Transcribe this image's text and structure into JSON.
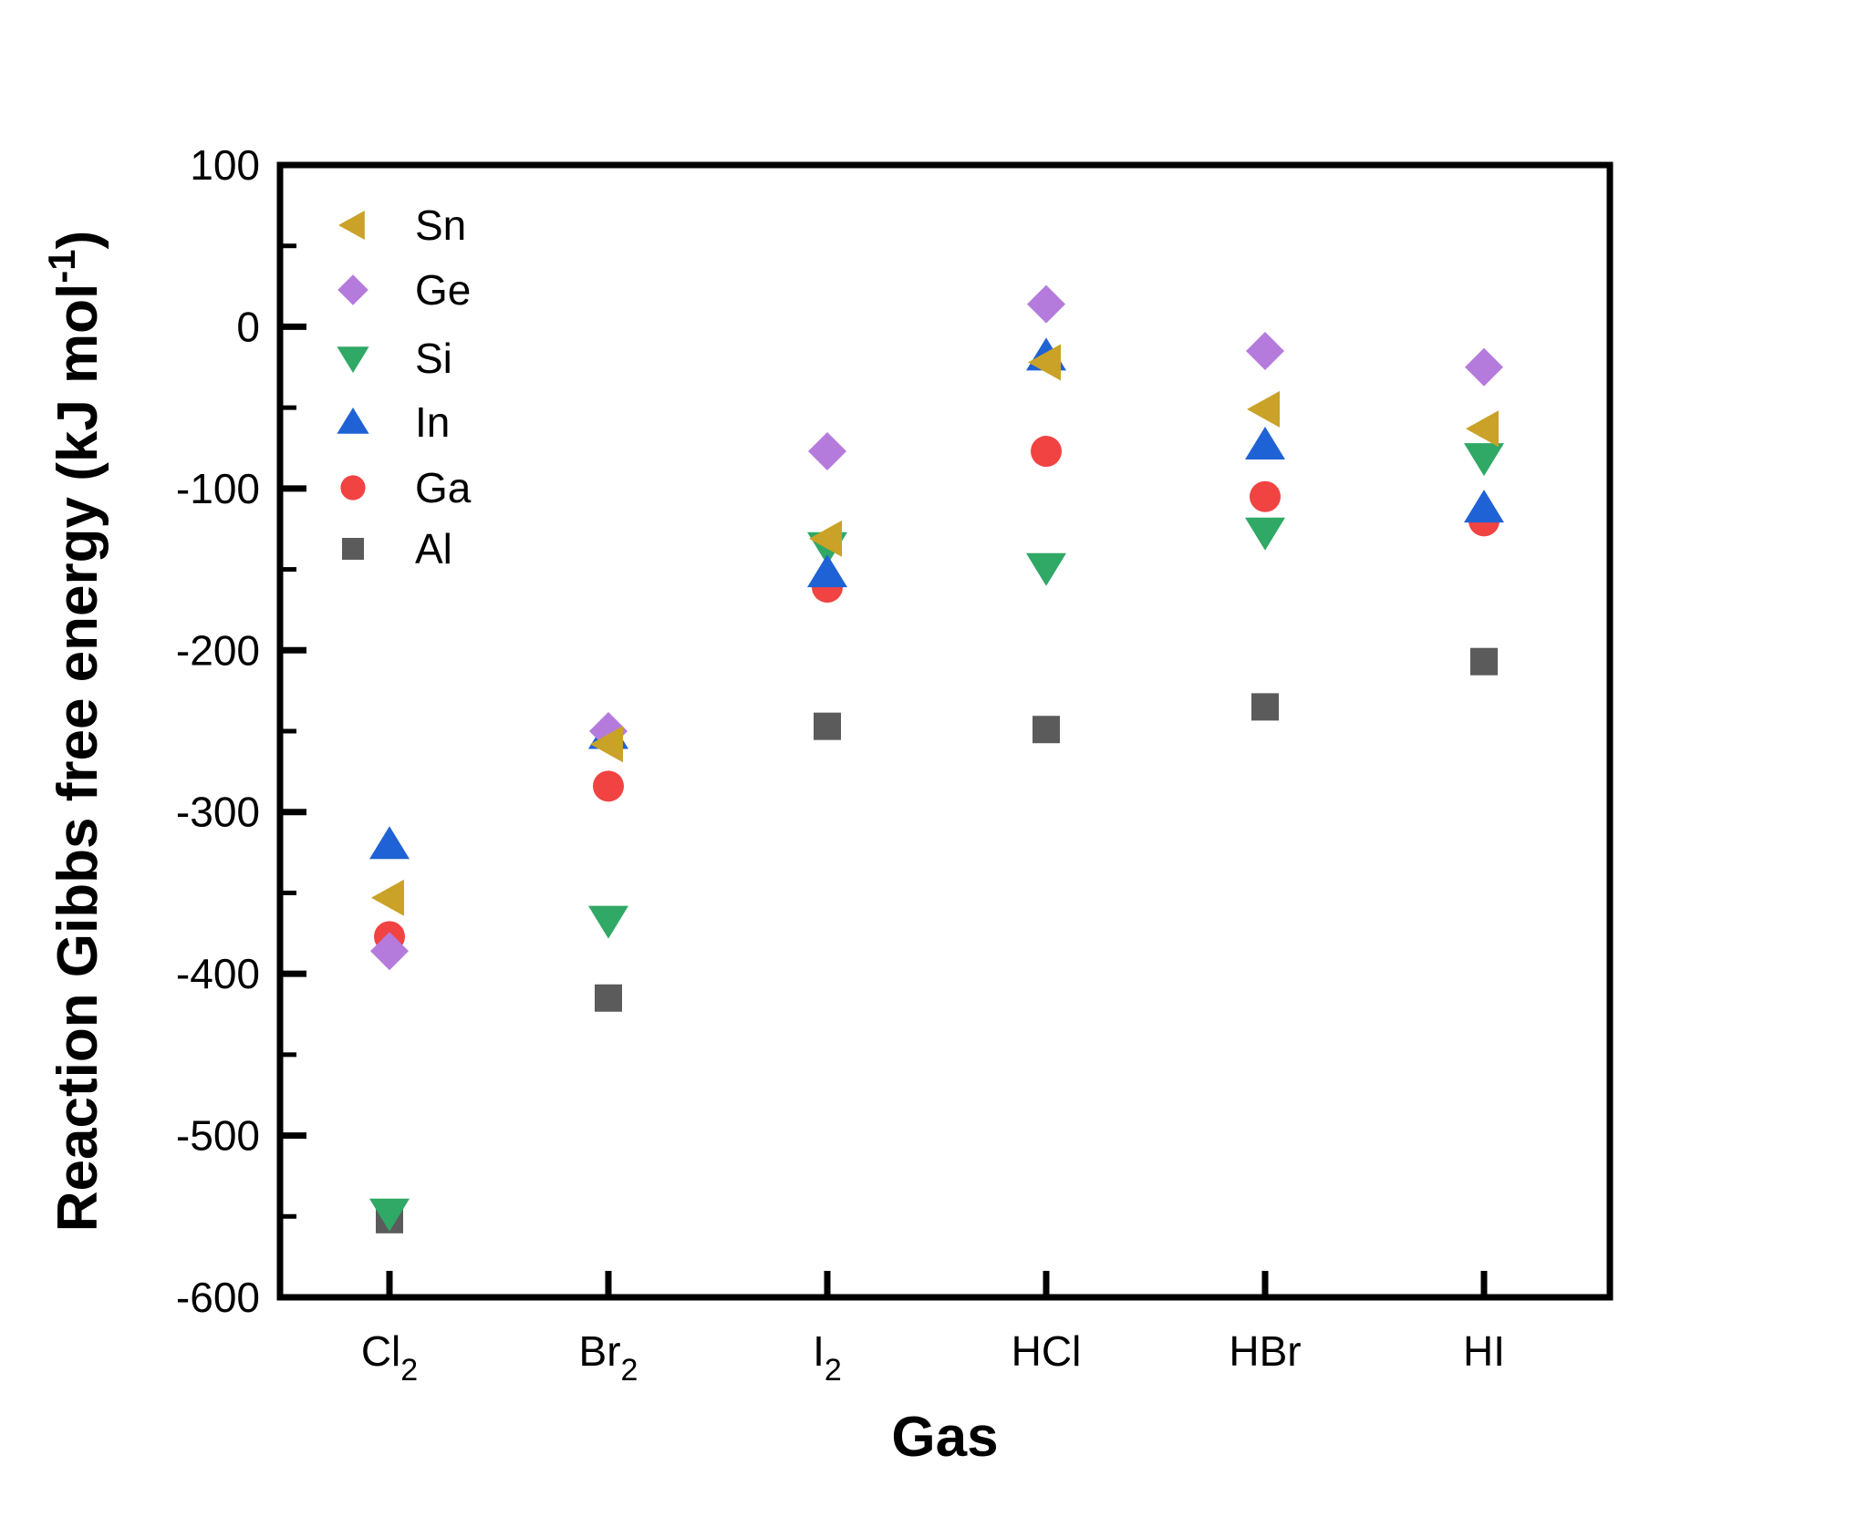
{
  "chart_data": {
    "type": "scatter",
    "title": "",
    "xlabel": "Gas",
    "ylabel": "Reaction Gibbs free energy (kJ mol⁻¹)",
    "ylabel_parts": [
      {
        "text": "Reaction Gibbs free energy (kJ mol"
      },
      {
        "sup": "-1"
      },
      {
        "text": ")"
      }
    ],
    "categories": [
      {
        "base": "Cl",
        "sub": "2"
      },
      {
        "base": "Br",
        "sub": "2"
      },
      {
        "base": "I",
        "sub": "2"
      },
      {
        "base": "HCl",
        "sub": ""
      },
      {
        "base": "HBr",
        "sub": ""
      },
      {
        "base": "HI",
        "sub": ""
      }
    ],
    "ylim": [
      -600,
      100
    ],
    "ytick_step": 100,
    "yminor_step": 50,
    "ytick_labels": [
      "100",
      "0",
      "-100",
      "-200",
      "-300",
      "-400",
      "-500",
      "-600"
    ],
    "grid": false,
    "legend_position": "top-left",
    "axis_color": "#000000",
    "series": [
      {
        "name": "Sn",
        "marker": "triangle-left",
        "color": "#C9A227",
        "values": [
          -353,
          -258,
          -131,
          -22,
          -51,
          -63
        ]
      },
      {
        "name": "Ge",
        "marker": "diamond",
        "color": "#B47BDC",
        "values": [
          -386,
          -250,
          -77,
          14,
          -15,
          -25
        ]
      },
      {
        "name": "Si",
        "marker": "triangle-down",
        "color": "#30A866",
        "values": [
          -548,
          -367,
          -136,
          -149,
          -127,
          -81
        ]
      },
      {
        "name": "In",
        "marker": "triangle-up",
        "color": "#1F62D5",
        "values": [
          -320,
          -252,
          -152,
          -18,
          -73,
          -112
        ]
      },
      {
        "name": "Ga",
        "marker": "circle",
        "color": "#F04342",
        "values": [
          -377,
          -284,
          -161,
          -77,
          -105,
          -120
        ]
      },
      {
        "name": "Al",
        "marker": "square",
        "color": "#5B5B5B",
        "values": [
          -552,
          -415,
          -247,
          -249,
          -235,
          -207
        ]
      }
    ],
    "draw_order": [
      "Al",
      "Si",
      "Ga",
      "In",
      "Ge",
      "Sn"
    ]
  }
}
